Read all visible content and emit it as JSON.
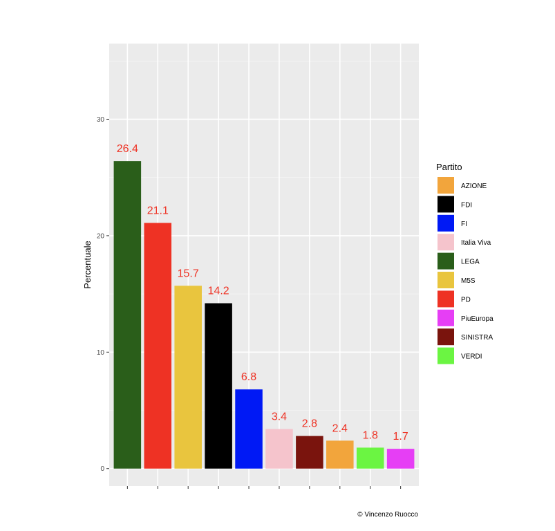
{
  "chart_data": {
    "type": "bar",
    "categories": [
      "LEGA",
      "PD",
      "M5S",
      "FDI",
      "FI",
      "Italia Viva",
      "SINISTRA",
      "AZIONE",
      "VERDI",
      "PiuEuropa"
    ],
    "values": [
      26.4,
      21.1,
      15.7,
      14.2,
      6.8,
      3.4,
      2.8,
      2.4,
      1.8,
      1.7
    ],
    "value_labels": [
      "26.4",
      "21.1",
      "15.7",
      "14.2",
      "6.8",
      "3.4",
      "2.8",
      "2.4",
      "1.8",
      "1.7"
    ],
    "colors": [
      "#2a5e1a",
      "#ee3224",
      "#e9c53e",
      "#000000",
      "#0019f5",
      "#f5c4cc",
      "#7a140d",
      "#f2a53c",
      "#6bf542",
      "#e63ef5"
    ],
    "ylabel": "Percentuale",
    "ylim": [
      -1.5,
      36.5
    ],
    "yticks": [
      0,
      10,
      20,
      30
    ],
    "ytick_labels": [
      "0",
      "10",
      "20",
      "30"
    ],
    "grid": true,
    "legend": {
      "title": "Partito",
      "position": "right",
      "items": [
        {
          "label": "AZIONE",
          "color": "#f2a53c"
        },
        {
          "label": "FDI",
          "color": "#000000"
        },
        {
          "label": "FI",
          "color": "#0019f5"
        },
        {
          "label": "Italia Viva",
          "color": "#f5c4cc"
        },
        {
          "label": "LEGA",
          "color": "#2a5e1a"
        },
        {
          "label": "M5S",
          "color": "#e9c53e"
        },
        {
          "label": "PD",
          "color": "#ee3224"
        },
        {
          "label": "PiuEuropa",
          "color": "#e63ef5"
        },
        {
          "label": "SINISTRA",
          "color": "#7a140d"
        },
        {
          "label": "VERDI",
          "color": "#6bf542"
        }
      ]
    },
    "value_label_color": "#ee3224",
    "panel_color": "#ebebeb",
    "caption": "© Vincenzo Ruocco"
  }
}
